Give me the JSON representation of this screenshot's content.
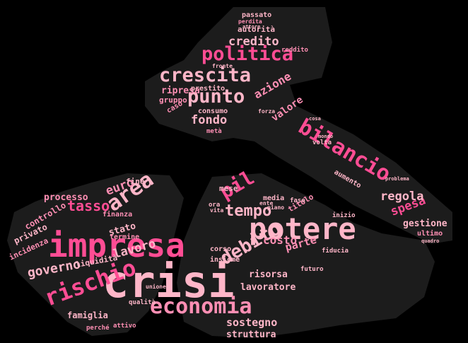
{
  "colors": {
    "background": "#000000",
    "shape_fill": "#2a2a2a",
    "pink_light": "#ffb6c8",
    "pink_mid": "#ff8fb4",
    "pink_hot": "#ff4d94",
    "pink_deep": "#e8307a"
  },
  "words": {
    "crisi": "crisi",
    "impresa": "impresa",
    "potere": "potere",
    "economia": "economia",
    "bilancio": "bilancio",
    "rischio": "rischio",
    "politica": "politica",
    "crescita": "crescita",
    "punto": "punto",
    "area": "area",
    "debito": "debito",
    "tempo": "tempo",
    "pil": "pil",
    "tasso": "tasso",
    "euro": "euro",
    "lavoro": "lavoro",
    "governo": "governo",
    "credito": "credito",
    "fondo": "fondo",
    "azione": "azione",
    "spesa": "spesa",
    "regola": "regola",
    "sostegno": "sostegno",
    "costo": "costo",
    "parte": "parte",
    "valore": "valore",
    "gestione": "gestione",
    "lavoratore": "lavoratore",
    "struttura": "struttura",
    "risorsa": "risorsa",
    "stato": "stato",
    "processo": "processo",
    "famiglia": "famiglia",
    "incidenza": "incidenza",
    "privato": "privato",
    "controllo": "controllo",
    "liquidita": "liquidità",
    "autorita": "autorità",
    "passato": "passato",
    "ripresa": "ripresa",
    "gruppo": "gruppo",
    "prestito": "prestito",
    "consumo": "consumo",
    "caso": "caso",
    "titolo": "titolo",
    "mese": "mese",
    "media": "media",
    "fine": "fine",
    "termine": "termine",
    "finanza": "finanza",
    "qualita": "qualità",
    "unione": "unione",
    "attivo": "attivo",
    "perche": "perché",
    "aumento": "aumento",
    "ultimo": "ultimo",
    "fiducia": "fiducia",
    "futuro": "futuro",
    "corso": "corso",
    "insieme": "insieme",
    "volta": "volta",
    "reddito": "reddito",
    "meta": "metà",
    "fronte": "fronte",
    "perdita": "perdita",
    "ora": "ora",
    "vita": "vita",
    "inizio": "inizio",
    "fase": "fase",
    "piano": "piano",
    "ente": "ente",
    "forza": "forza",
    "quadro": "quadro",
    "problema": "problema",
    "mondo": "mondo",
    "attore": "attore",
    "cosa": "cosa"
  }
}
